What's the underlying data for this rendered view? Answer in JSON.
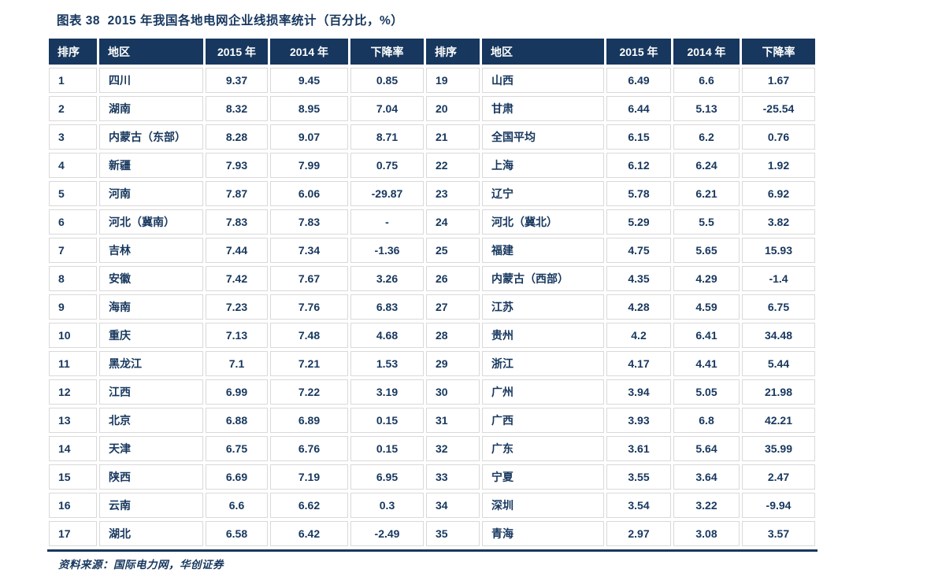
{
  "title": "图表 38  2015 年我国各地电网企业线损率统计（百分比，%）",
  "source_note": "资料来源：国际电力网，华创证券",
  "colors": {
    "header_bg": "#17375E",
    "body_text": "#17375E",
    "decline_positive": "#FF0000",
    "decline_negative": "#00B050",
    "grid_line": "#D9D9D9",
    "bottom_border": "#17375E"
  },
  "chart_data": {
    "type": "table",
    "title": "图表 38  2015 年我国各地电网企业线损率统计（百分比，%）",
    "columns": [
      "排序",
      "地区",
      "2015 年",
      "2014 年",
      "下降率"
    ],
    "left_rows": [
      {
        "rank": "1",
        "region": "四川",
        "v2015": "9.37",
        "v2014": "9.45",
        "decline": "0.85",
        "decline_color": "red"
      },
      {
        "rank": "2",
        "region": "湖南",
        "v2015": "8.32",
        "v2014": "8.95",
        "decline": "7.04",
        "decline_color": "red"
      },
      {
        "rank": "3",
        "region": "内蒙古（东部）",
        "v2015": "8.28",
        "v2014": "9.07",
        "decline": "8.71",
        "decline_color": "red"
      },
      {
        "rank": "4",
        "region": "新疆",
        "v2015": "7.93",
        "v2014": "7.99",
        "decline": "0.75",
        "decline_color": "red"
      },
      {
        "rank": "5",
        "region": "河南",
        "v2015": "7.87",
        "v2014": "6.06",
        "decline": "-29.87",
        "decline_color": "green"
      },
      {
        "rank": "6",
        "region": "河北（冀南）",
        "v2015": "7.83",
        "v2014": "7.83",
        "decline": "-",
        "decline_color": "green"
      },
      {
        "rank": "7",
        "region": "吉林",
        "v2015": "7.44",
        "v2014": "7.34",
        "decline": "-1.36",
        "decline_color": "green"
      },
      {
        "rank": "8",
        "region": "安徽",
        "v2015": "7.42",
        "v2014": "7.67",
        "decline": "3.26",
        "decline_color": "red"
      },
      {
        "rank": "9",
        "region": "海南",
        "v2015": "7.23",
        "v2014": "7.76",
        "decline": "6.83",
        "decline_color": "red"
      },
      {
        "rank": "10",
        "region": "重庆",
        "v2015": "7.13",
        "v2014": "7.48",
        "decline": "4.68",
        "decline_color": "red"
      },
      {
        "rank": "11",
        "region": "黑龙江",
        "v2015": "7.1",
        "v2014": "7.21",
        "decline": "1.53",
        "decline_color": "red"
      },
      {
        "rank": "12",
        "region": "江西",
        "v2015": "6.99",
        "v2014": "7.22",
        "decline": "3.19",
        "decline_color": "red"
      },
      {
        "rank": "13",
        "region": "北京",
        "v2015": "6.88",
        "v2014": "6.89",
        "decline": "0.15",
        "decline_color": "red"
      },
      {
        "rank": "14",
        "region": "天津",
        "v2015": "6.75",
        "v2014": "6.76",
        "decline": "0.15",
        "decline_color": "red"
      },
      {
        "rank": "15",
        "region": "陕西",
        "v2015": "6.69",
        "v2014": "7.19",
        "decline": "6.95",
        "decline_color": "red"
      },
      {
        "rank": "16",
        "region": "云南",
        "v2015": "6.6",
        "v2014": "6.62",
        "decline": "0.3",
        "decline_color": "red"
      },
      {
        "rank": "17",
        "region": "湖北",
        "v2015": "6.58",
        "v2014": "6.42",
        "decline": "-2.49",
        "decline_color": "green"
      }
    ],
    "right_rows": [
      {
        "rank": "19",
        "region": "山西",
        "v2015": "6.49",
        "v2014": "6.6",
        "decline": "1.67",
        "decline_color": "red"
      },
      {
        "rank": "20",
        "region": "甘肃",
        "v2015": "6.44",
        "v2014": "5.13",
        "decline": "-25.54",
        "decline_color": "green"
      },
      {
        "rank": "21",
        "region": "全国平均",
        "v2015": "6.15",
        "v2014": "6.2",
        "decline": "0.76",
        "decline_color": "red",
        "emphasis": true
      },
      {
        "rank": "22",
        "region": "上海",
        "v2015": "6.12",
        "v2014": "6.24",
        "decline": "1.92",
        "decline_color": "red"
      },
      {
        "rank": "23",
        "region": "辽宁",
        "v2015": "5.78",
        "v2014": "6.21",
        "decline": "6.92",
        "decline_color": "red"
      },
      {
        "rank": "24",
        "region": "河北（冀北）",
        "v2015": "5.29",
        "v2014": "5.5",
        "decline": "3.82",
        "decline_color": "red"
      },
      {
        "rank": "25",
        "region": "福建",
        "v2015": "4.75",
        "v2014": "5.65",
        "decline": "15.93",
        "decline_color": "red"
      },
      {
        "rank": "26",
        "region": "内蒙古（西部）",
        "v2015": "4.35",
        "v2014": "4.29",
        "decline": "-1.4",
        "decline_color": "green"
      },
      {
        "rank": "27",
        "region": "江苏",
        "v2015": "4.28",
        "v2014": "4.59",
        "decline": "6.75",
        "decline_color": "red"
      },
      {
        "rank": "28",
        "region": "贵州",
        "v2015": "4.2",
        "v2014": "6.41",
        "decline": "34.48",
        "decline_color": "red"
      },
      {
        "rank": "29",
        "region": "浙江",
        "v2015": "4.17",
        "v2014": "4.41",
        "decline": "5.44",
        "decline_color": "red"
      },
      {
        "rank": "30",
        "region": "广州",
        "v2015": "3.94",
        "v2014": "5.05",
        "decline": "21.98",
        "decline_color": "red"
      },
      {
        "rank": "31",
        "region": "广西",
        "v2015": "3.93",
        "v2014": "6.8",
        "decline": "42.21",
        "decline_color": "red"
      },
      {
        "rank": "32",
        "region": "广东",
        "v2015": "3.61",
        "v2014": "5.64",
        "decline": "35.99",
        "decline_color": "red"
      },
      {
        "rank": "33",
        "region": "宁夏",
        "v2015": "3.55",
        "v2014": "3.64",
        "decline": "2.47",
        "decline_color": "red"
      },
      {
        "rank": "34",
        "region": "深圳",
        "v2015": "3.54",
        "v2014": "3.22",
        "decline": "-9.94",
        "decline_color": "green"
      },
      {
        "rank": "35",
        "region": "青海",
        "v2015": "2.97",
        "v2014": "3.08",
        "decline": "3.57",
        "decline_color": "red"
      }
    ]
  }
}
